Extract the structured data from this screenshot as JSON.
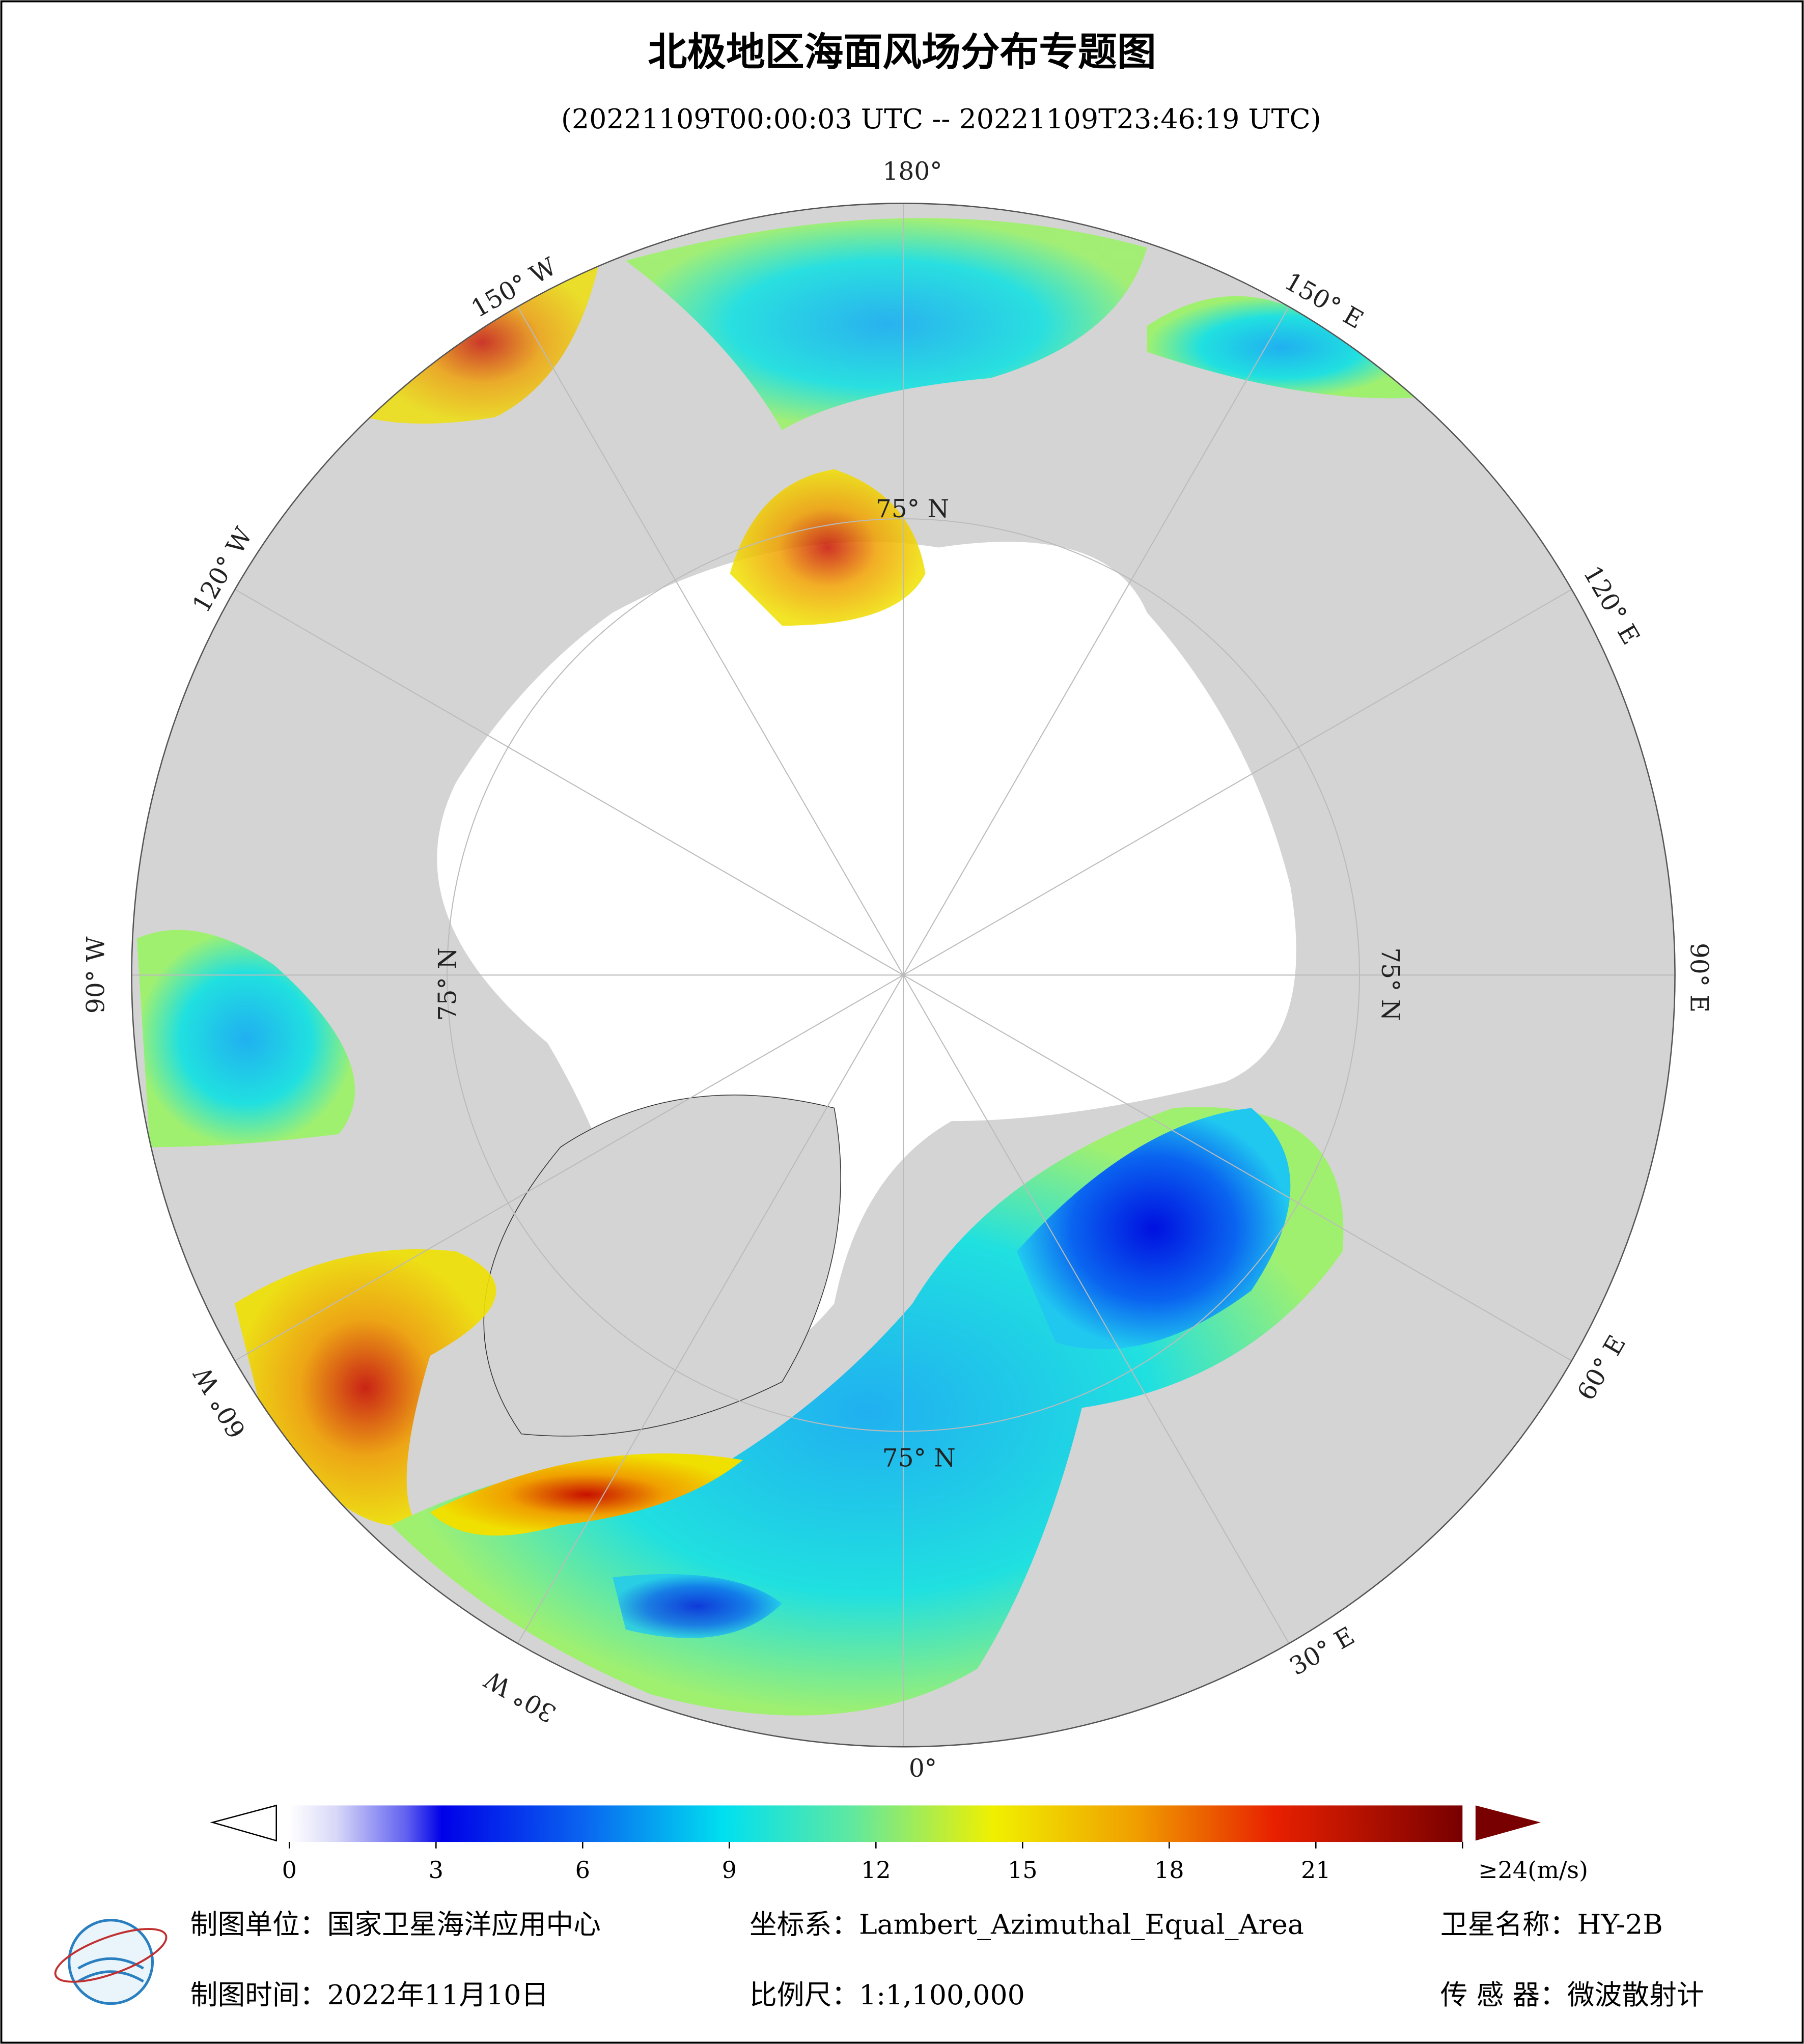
{
  "header": {
    "title": "北极地区海面风场分布专题图",
    "subtitle": "(20221109T00:00:03 UTC -- 20221109T23:46:19 UTC)"
  },
  "map": {
    "longitude_labels": [
      "180°",
      "150° W",
      "120° W",
      "90° W",
      "60° W",
      "30° W",
      "0°",
      "30° E",
      "60° E",
      "90° E",
      "120° E",
      "150° E"
    ],
    "latitude_labels": [
      "75° N",
      "75° N",
      "75° N",
      "75° N"
    ]
  },
  "colorbar": {
    "lim": [
      0,
      24
    ],
    "ticks": [
      0,
      3,
      6,
      9,
      12,
      15,
      18,
      21,
      {
        "value": 24,
        "label": "≥24(m/s)"
      }
    ]
  },
  "footer": {
    "unit": "制图单位：国家卫星海洋应用中心",
    "crs": "坐标系：Lambert_Azimuthal_Equal_Area",
    "satellite": "卫星名称：HY-2B",
    "date": "制图时间：2022年11月10日",
    "scale": "比例尺：1:1,100,000",
    "sensor": "传 感 器：微波散射计"
  }
}
